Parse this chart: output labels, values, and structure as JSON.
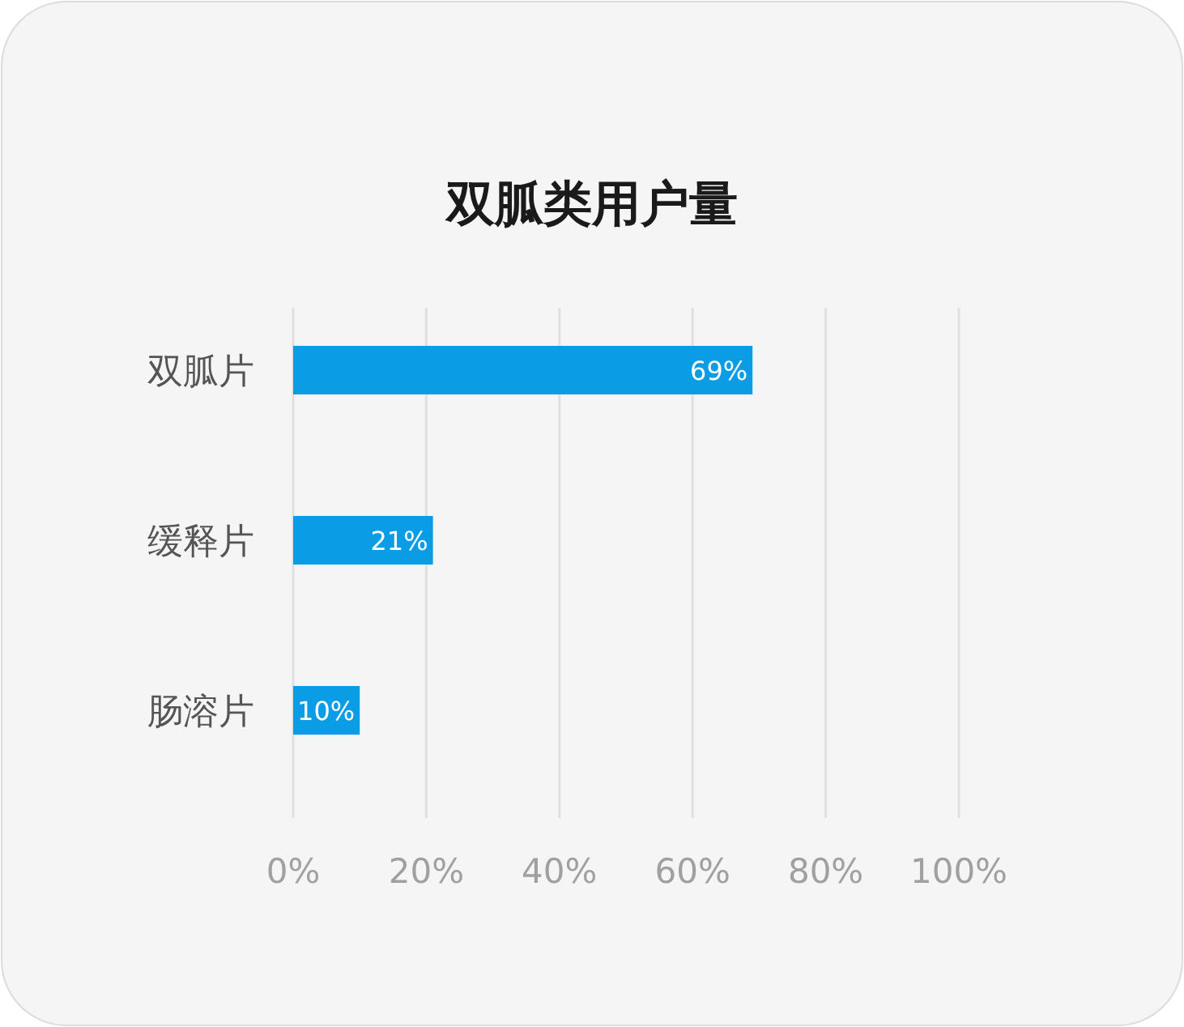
{
  "chart_data": {
    "type": "bar",
    "orientation": "horizontal",
    "title": "双胍类用户量",
    "categories": [
      "双胍片",
      "缓释片",
      "肠溶片"
    ],
    "values": [
      69,
      21,
      10
    ],
    "value_labels": [
      "69%",
      "21%",
      "10%"
    ],
    "color": "#0a9de6",
    "xlim": [
      0,
      100
    ],
    "xticks": [
      {
        "value": 0,
        "label": "0%"
      },
      {
        "value": 20,
        "label": "20%"
      },
      {
        "value": 40,
        "label": "40%"
      },
      {
        "value": 60,
        "label": "60%"
      },
      {
        "value": 80,
        "label": "80%"
      },
      {
        "value": 100,
        "label": "100%"
      }
    ],
    "grid": "x"
  }
}
